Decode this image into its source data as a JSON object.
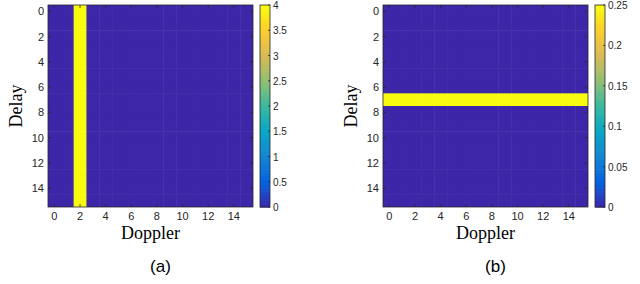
{
  "chart_data": [
    {
      "type": "heatmap",
      "panel_label": "(a)",
      "x_label": "Doppler",
      "y_label": "Delay",
      "x": [
        0,
        1,
        2,
        3,
        4,
        5,
        6,
        7,
        8,
        9,
        10,
        11,
        12,
        13,
        14,
        15
      ],
      "y": [
        0,
        1,
        2,
        3,
        4,
        5,
        6,
        7,
        8,
        9,
        10,
        11,
        12,
        13,
        14,
        15
      ],
      "xlim": [
        -0.5,
        15.5
      ],
      "ylim": [
        -0.5,
        15.5
      ],
      "xticks": [
        0,
        2,
        4,
        6,
        8,
        10,
        12,
        14
      ],
      "yticks": [
        0,
        2,
        4,
        6,
        8,
        10,
        12,
        14
      ],
      "cells": [
        [
          0,
          0,
          4,
          0,
          0,
          0,
          0,
          0,
          0,
          0,
          0,
          0,
          0,
          0,
          0,
          0
        ],
        [
          0,
          0,
          4,
          0,
          0,
          0,
          0,
          0,
          0,
          0,
          0,
          0,
          0,
          0,
          0,
          0
        ],
        [
          0,
          0,
          4,
          0,
          0,
          0,
          0,
          0,
          0,
          0,
          0,
          0,
          0,
          0,
          0,
          0
        ],
        [
          0,
          0,
          4,
          0,
          0,
          0,
          0,
          0,
          0,
          0,
          0,
          0,
          0,
          0,
          0,
          0
        ],
        [
          0,
          0,
          4,
          0,
          0,
          0,
          0,
          0,
          0,
          0,
          0,
          0,
          0,
          0,
          0,
          0
        ],
        [
          0,
          0,
          4,
          0,
          0,
          0,
          0,
          0,
          0,
          0,
          0,
          0,
          0,
          0,
          0,
          0
        ],
        [
          0,
          0,
          4,
          0,
          0,
          0,
          0,
          0,
          0,
          0,
          0,
          0,
          0,
          0,
          0,
          0
        ],
        [
          0,
          0,
          4,
          0,
          0,
          0,
          0,
          0,
          0,
          0,
          0,
          0,
          0,
          0,
          0,
          0
        ],
        [
          0,
          0,
          4,
          0,
          0,
          0,
          0,
          0,
          0,
          0,
          0,
          0,
          0,
          0,
          0,
          0
        ],
        [
          0,
          0,
          4,
          0,
          0,
          0,
          0,
          0,
          0,
          0,
          0,
          0,
          0,
          0,
          0,
          0
        ],
        [
          0,
          0,
          4,
          0,
          0,
          0,
          0,
          0,
          0,
          0,
          0,
          0,
          0,
          0,
          0,
          0
        ],
        [
          0,
          0,
          4,
          0,
          0,
          0,
          0,
          0,
          0,
          0,
          0,
          0,
          0,
          0,
          0,
          0
        ],
        [
          0,
          0,
          4,
          0,
          0,
          0,
          0,
          0,
          0,
          0,
          0,
          0,
          0,
          0,
          0,
          0
        ],
        [
          0,
          0,
          4,
          0,
          0,
          0,
          0,
          0,
          0,
          0,
          0,
          0,
          0,
          0,
          0,
          0
        ],
        [
          0,
          0,
          4,
          0,
          0,
          0,
          0,
          0,
          0,
          0,
          0,
          0,
          0,
          0,
          0,
          0
        ],
        [
          0,
          0,
          4,
          0,
          0,
          0,
          0,
          0,
          0,
          0,
          0,
          0,
          0,
          0,
          0,
          0
        ]
      ],
      "colorbar": {
        "lim": [
          0,
          4
        ],
        "ticks": [
          0,
          0.5,
          1,
          1.5,
          2,
          2.5,
          3,
          3.5,
          4
        ]
      }
    },
    {
      "type": "heatmap",
      "panel_label": "(b)",
      "x_label": "Doppler",
      "y_label": "Delay",
      "x": [
        0,
        1,
        2,
        3,
        4,
        5,
        6,
        7,
        8,
        9,
        10,
        11,
        12,
        13,
        14,
        15
      ],
      "y": [
        0,
        1,
        2,
        3,
        4,
        5,
        6,
        7,
        8,
        9,
        10,
        11,
        12,
        13,
        14,
        15
      ],
      "xlim": [
        -0.5,
        15.5
      ],
      "ylim": [
        -0.5,
        15.5
      ],
      "xticks": [
        0,
        2,
        4,
        6,
        8,
        10,
        12,
        14
      ],
      "yticks": [
        0,
        2,
        4,
        6,
        8,
        10,
        12,
        14
      ],
      "cells": [
        [
          0,
          0,
          0,
          0,
          0,
          0,
          0,
          0,
          0,
          0,
          0,
          0,
          0,
          0,
          0,
          0
        ],
        [
          0,
          0,
          0,
          0,
          0,
          0,
          0,
          0,
          0,
          0,
          0,
          0,
          0,
          0,
          0,
          0
        ],
        [
          0,
          0,
          0,
          0,
          0,
          0,
          0,
          0,
          0,
          0,
          0,
          0,
          0,
          0,
          0,
          0
        ],
        [
          0,
          0,
          0,
          0,
          0,
          0,
          0,
          0,
          0,
          0,
          0,
          0,
          0,
          0,
          0,
          0
        ],
        [
          0,
          0,
          0,
          0,
          0,
          0,
          0,
          0,
          0,
          0,
          0,
          0,
          0,
          0,
          0,
          0
        ],
        [
          0,
          0,
          0,
          0,
          0,
          0,
          0,
          0,
          0,
          0,
          0,
          0,
          0,
          0,
          0,
          0
        ],
        [
          0,
          0,
          0,
          0,
          0,
          0,
          0,
          0,
          0,
          0,
          0,
          0,
          0,
          0,
          0,
          0
        ],
        [
          0.25,
          0.25,
          0.25,
          0.25,
          0.25,
          0.25,
          0.25,
          0.25,
          0.25,
          0.25,
          0.25,
          0.25,
          0.25,
          0.25,
          0.25,
          0.25
        ],
        [
          0,
          0,
          0,
          0,
          0,
          0,
          0,
          0,
          0,
          0,
          0,
          0,
          0,
          0,
          0,
          0
        ],
        [
          0,
          0,
          0,
          0,
          0,
          0,
          0,
          0,
          0,
          0,
          0,
          0,
          0,
          0,
          0,
          0
        ],
        [
          0,
          0,
          0,
          0,
          0,
          0,
          0,
          0,
          0,
          0,
          0,
          0,
          0,
          0,
          0,
          0
        ],
        [
          0,
          0,
          0,
          0,
          0,
          0,
          0,
          0,
          0,
          0,
          0,
          0,
          0,
          0,
          0,
          0
        ],
        [
          0,
          0,
          0,
          0,
          0,
          0,
          0,
          0,
          0,
          0,
          0,
          0,
          0,
          0,
          0,
          0
        ],
        [
          0,
          0,
          0,
          0,
          0,
          0,
          0,
          0,
          0,
          0,
          0,
          0,
          0,
          0,
          0,
          0
        ],
        [
          0,
          0,
          0,
          0,
          0,
          0,
          0,
          0,
          0,
          0,
          0,
          0,
          0,
          0,
          0,
          0
        ],
        [
          0,
          0,
          0,
          0,
          0,
          0,
          0,
          0,
          0,
          0,
          0,
          0,
          0,
          0,
          0,
          0
        ]
      ],
      "colorbar": {
        "lim": [
          0,
          0.25
        ],
        "ticks": [
          0,
          0.05,
          0.1,
          0.15,
          0.2,
          0.25
        ]
      }
    }
  ]
}
